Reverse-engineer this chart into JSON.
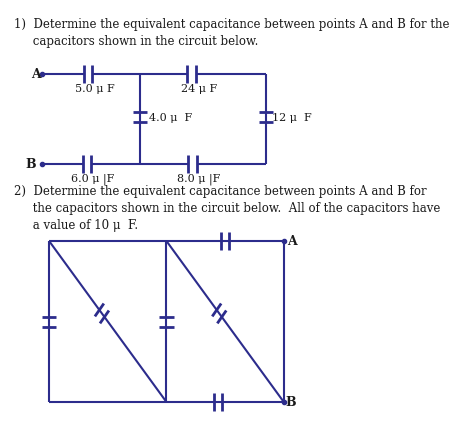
{
  "title1": "1)  Determine the equivalent capacitance between points A and B for the\n     capacitors shown in the circuit below.",
  "title2": "2)  Determine the equivalent capacitance between points A and B for\n     the capacitors shown in the circuit below.  All of the capacitors have\n     a value of 10 μ  F.",
  "bg_color": "#ffffff",
  "line_color": "#2c2c8c",
  "text_color": "#1a1a1a",
  "cap_labels": {
    "c1": "5.0 μ F",
    "c2": "24 μ F",
    "c3": "4.0 μ  F",
    "c4": "12 μ  F",
    "c5": "6.0 μ |F",
    "c6": "8.0 μ |F"
  }
}
